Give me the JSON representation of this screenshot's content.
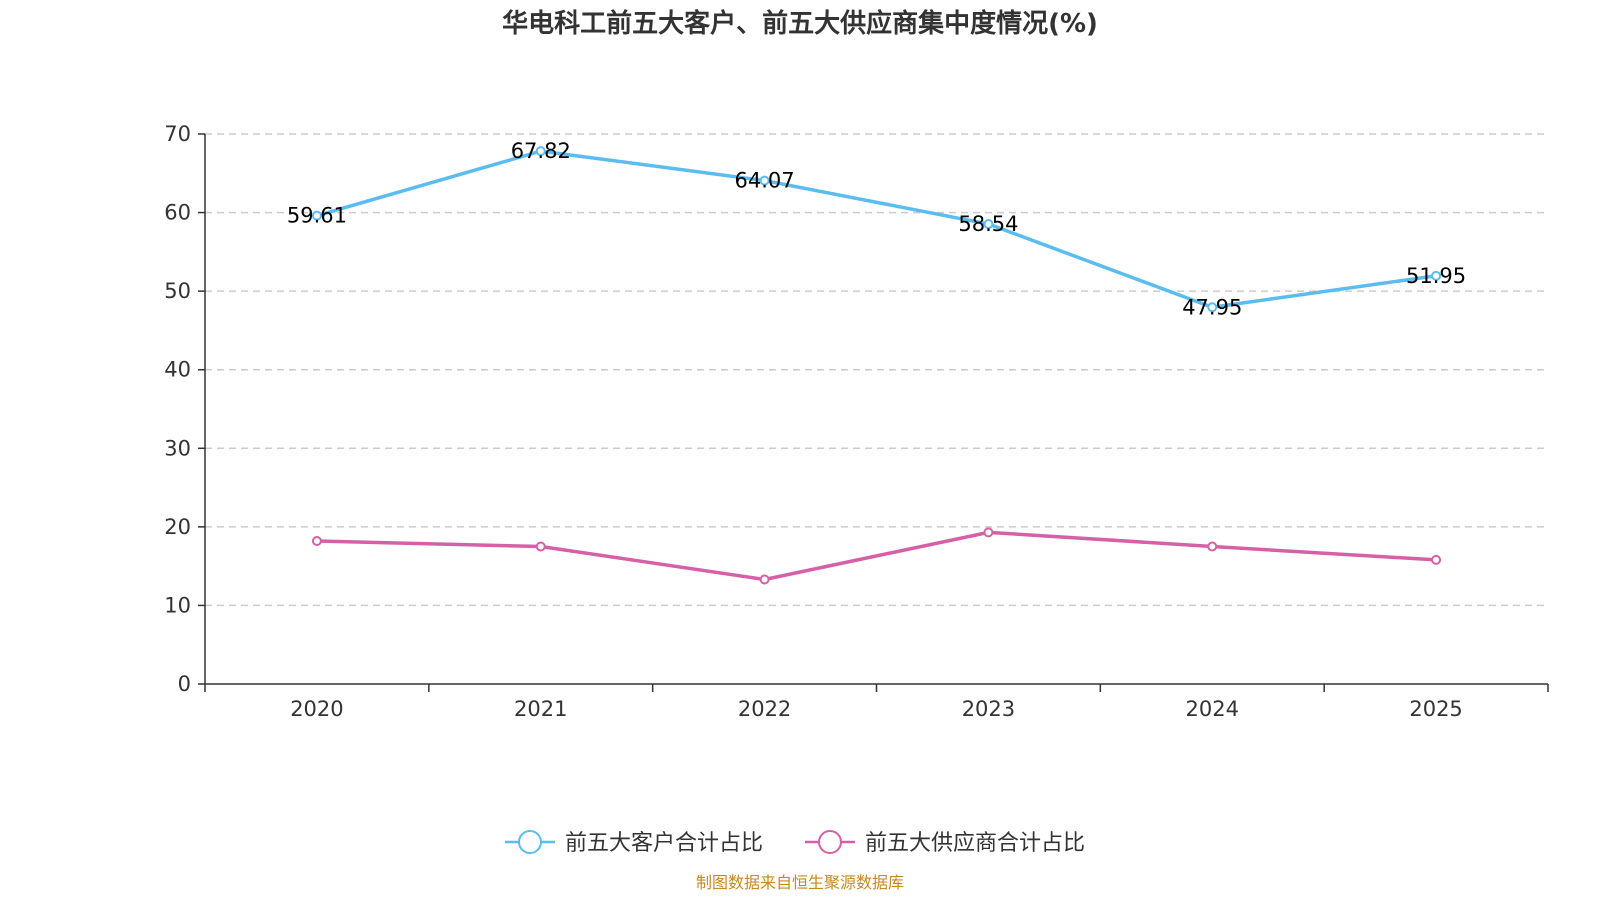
{
  "chart_data": {
    "type": "line",
    "title": "华电科工前五大客户、前五大供应商集中度情况(%)",
    "categories": [
      "2020",
      "2021",
      "2022",
      "2023",
      "2024",
      "2025"
    ],
    "ylim": [
      0,
      70
    ],
    "yticks": [
      0,
      10,
      20,
      30,
      40,
      50,
      60,
      70
    ],
    "grid": true,
    "legend_position": "bottom-center",
    "series": [
      {
        "name": "前五大客户合计占比",
        "color": "#5bbcf0",
        "values": [
          59.61,
          67.82,
          64.07,
          58.54,
          47.95,
          51.95
        ],
        "labels": [
          "59.61",
          "67.82",
          "64.07",
          "58.54",
          "47.95",
          "51.95"
        ]
      },
      {
        "name": "前五大供应商合计占比",
        "color": "#d660a8",
        "values": [
          18.2,
          17.5,
          13.3,
          19.3,
          17.5,
          15.8
        ]
      }
    ],
    "source": "制图数据来自恒生聚源数据库"
  }
}
